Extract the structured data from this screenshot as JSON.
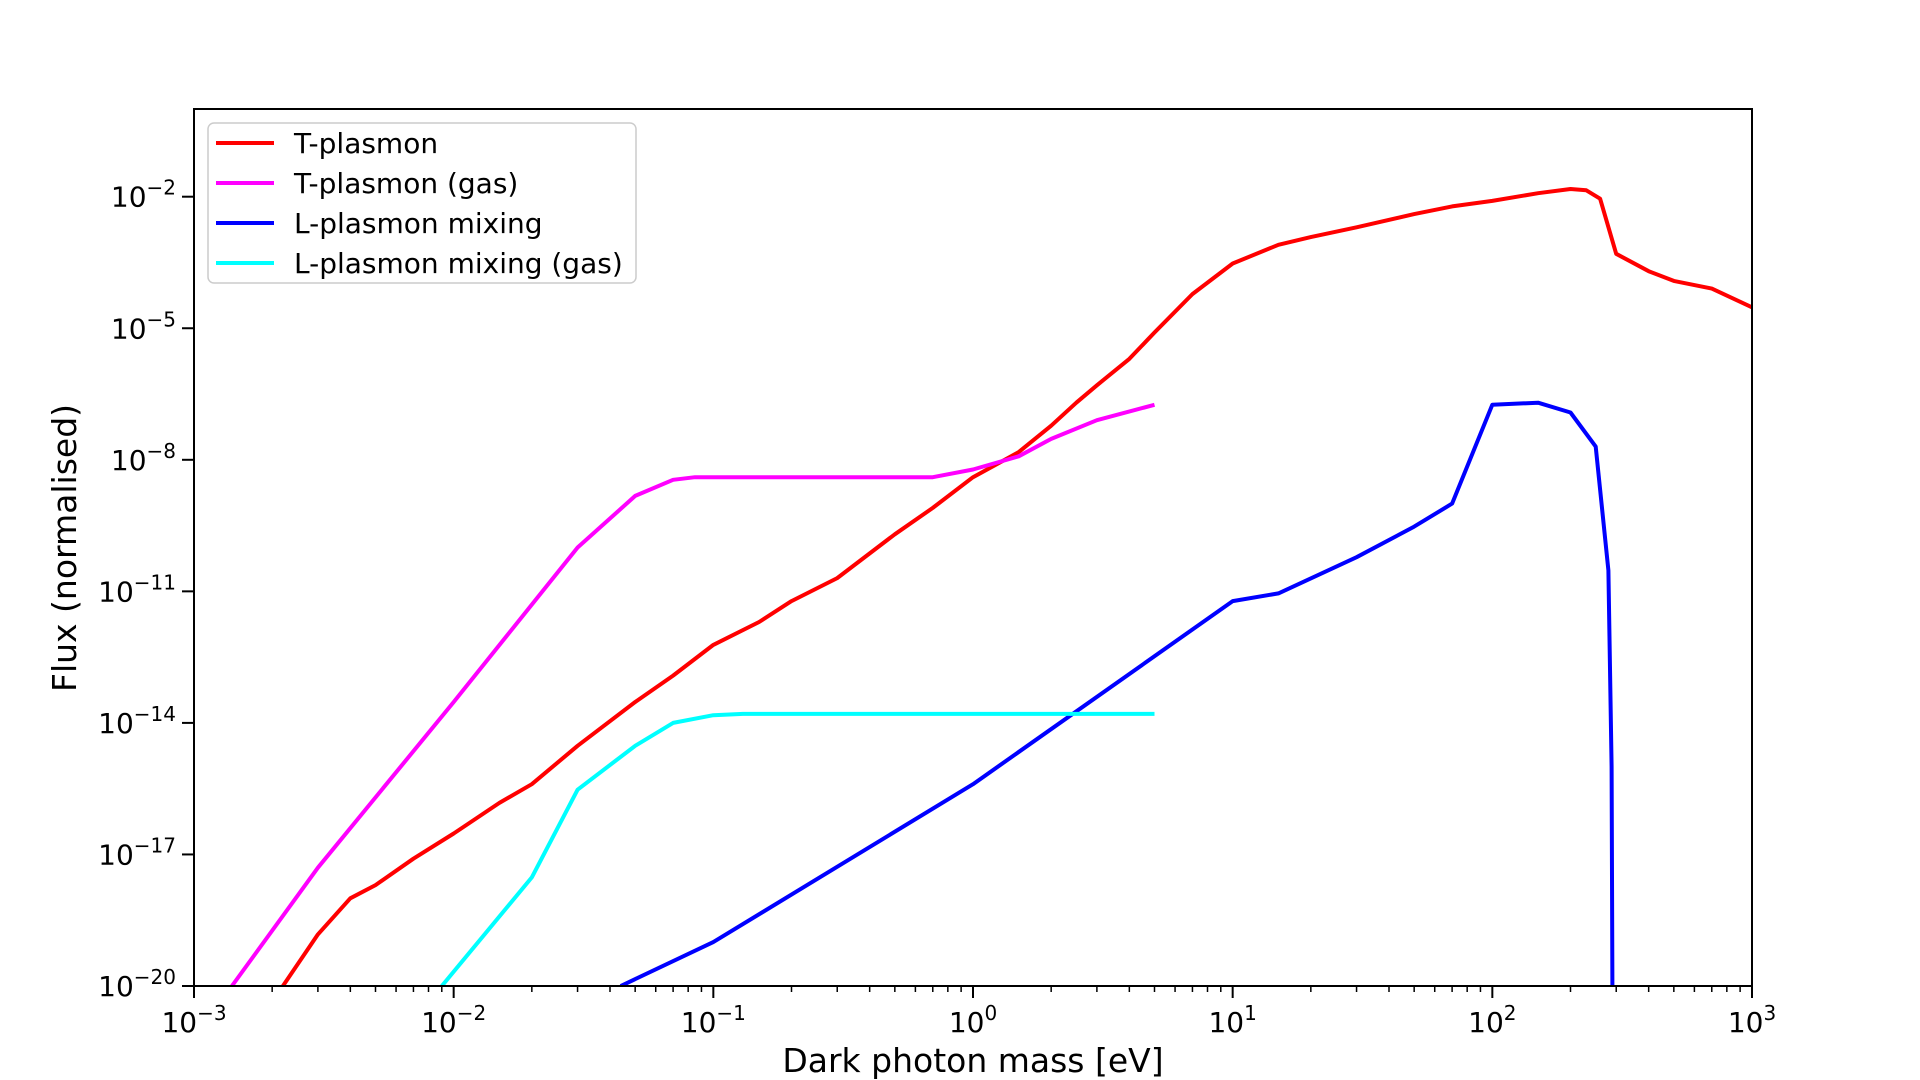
{
  "chart_data": {
    "type": "line",
    "title": "",
    "xlabel": "Dark photon mass [eV]",
    "ylabel": "Flux (normalised)",
    "xscale": "log",
    "yscale": "log",
    "xlim": [
      0.001,
      1000
    ],
    "ylim": [
      1e-20,
      1
    ],
    "grid": false,
    "legend_position": "top-left",
    "x_ticks": [
      {
        "value": 0.001,
        "base": "10",
        "exp": "−3"
      },
      {
        "value": 0.01,
        "base": "10",
        "exp": "−2"
      },
      {
        "value": 0.1,
        "base": "10",
        "exp": "−1"
      },
      {
        "value": 1,
        "base": "10",
        "exp": "0"
      },
      {
        "value": 10,
        "base": "10",
        "exp": "1"
      },
      {
        "value": 100,
        "base": "10",
        "exp": "2"
      },
      {
        "value": 1000,
        "base": "10",
        "exp": "3"
      }
    ],
    "y_ticks": [
      {
        "value": 1e-20,
        "base": "10",
        "exp": "−20"
      },
      {
        "value": 1e-17,
        "base": "10",
        "exp": "−17"
      },
      {
        "value": 1e-14,
        "base": "10",
        "exp": "−14"
      },
      {
        "value": 1e-11,
        "base": "10",
        "exp": "−11"
      },
      {
        "value": 1e-08,
        "base": "10",
        "exp": "−8"
      },
      {
        "value": 1e-05,
        "base": "10",
        "exp": "−5"
      },
      {
        "value": 0.01,
        "base": "10",
        "exp": "−2"
      }
    ],
    "series": [
      {
        "name": "T-plasmon",
        "color": "#ff0000",
        "x": [
          0.0022,
          0.003,
          0.004,
          0.005,
          0.007,
          0.01,
          0.015,
          0.02,
          0.03,
          0.05,
          0.07,
          0.1,
          0.15,
          0.2,
          0.3,
          0.5,
          0.7,
          1.0,
          1.5,
          2.0,
          2.5,
          3.0,
          4.0,
          5.0,
          7.0,
          10,
          15,
          20,
          30,
          50,
          70,
          100,
          150,
          200,
          230,
          260,
          300,
          400,
          500,
          700,
          1000
        ],
        "y": [
          1e-20,
          1.5e-19,
          1e-18,
          2e-18,
          8e-18,
          3e-17,
          1.5e-16,
          4e-16,
          3e-15,
          3e-14,
          1.2e-13,
          6e-13,
          2e-12,
          6e-12,
          2e-11,
          2e-10,
          8e-10,
          4e-09,
          1.5e-08,
          6e-08,
          2e-07,
          5e-07,
          2e-06,
          8e-06,
          6e-05,
          0.0003,
          0.0008,
          0.0012,
          0.002,
          0.004,
          0.006,
          0.008,
          0.012,
          0.015,
          0.014,
          0.009,
          0.0005,
          0.0002,
          0.00012,
          8e-05,
          3e-05
        ]
      },
      {
        "name": "T-plasmon (gas)",
        "color": "#ff00ff",
        "x": [
          0.0014,
          0.003,
          0.01,
          0.02,
          0.03,
          0.05,
          0.07,
          0.085,
          0.1,
          0.3,
          0.7,
          1.0,
          1.5,
          2.0,
          3.0,
          5.0
        ],
        "y": [
          1e-20,
          5e-18,
          3e-14,
          5e-12,
          1e-10,
          1.5e-09,
          3.5e-09,
          4e-09,
          4e-09,
          4e-09,
          4e-09,
          6e-09,
          1.2e-08,
          3e-08,
          8e-08,
          1.8e-07
        ]
      },
      {
        "name": "L-plasmon mixing",
        "color": "#0000ff",
        "x": [
          0.044,
          0.1,
          1.0,
          10,
          15,
          30,
          50,
          70,
          100,
          150,
          200,
          250,
          280,
          288,
          290
        ],
        "y": [
          1e-20,
          1e-19,
          4e-16,
          6e-12,
          9e-12,
          6e-11,
          3e-10,
          1e-09,
          1.8e-07,
          2e-07,
          1.2e-07,
          2e-08,
          3e-11,
          1e-15,
          1e-20
        ]
      },
      {
        "name": "L-plasmon mixing (gas)",
        "color": "#00ffff",
        "x": [
          0.009,
          0.02,
          0.03,
          0.05,
          0.07,
          0.1,
          0.13,
          0.2,
          1.0,
          5.0
        ],
        "y": [
          1e-20,
          3e-18,
          3e-16,
          3e-15,
          1e-14,
          1.5e-14,
          1.6e-14,
          1.6e-14,
          1.6e-14,
          1.6e-14
        ]
      }
    ]
  }
}
